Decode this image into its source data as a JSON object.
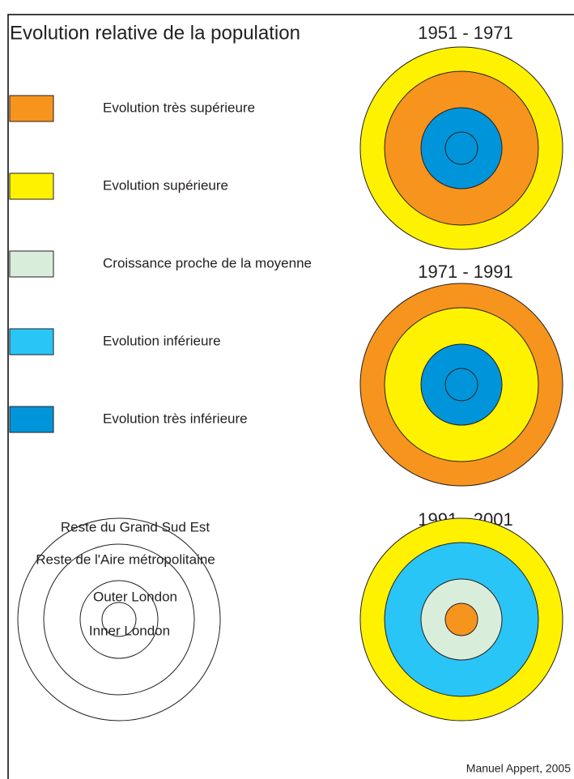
{
  "header": {
    "title": "Evolution relative de la population"
  },
  "legend": [
    {
      "label": "Evolution très supérieure",
      "color": "#f7941d"
    },
    {
      "label": "Evolution supérieure",
      "color": "#fff200"
    },
    {
      "label": "Croissance proche de la moyenne",
      "color": "#d9eddb"
    },
    {
      "label": "Evolution inférieure",
      "color": "#29c5f6"
    },
    {
      "label": "Evolution très inférieure",
      "color": "#0095da"
    }
  ],
  "periods": [
    {
      "label": "1951 - 1971",
      "rings": [
        "#fff200",
        "#f7941d",
        "#0095da",
        "#0095da"
      ]
    },
    {
      "label": "1971 - 1991",
      "rings": [
        "#f7941d",
        "#fff200",
        "#0095da",
        "#0095da"
      ]
    },
    {
      "label": "1991 - 2001",
      "rings": [
        "#fff200",
        "#29c5f6",
        "#d9eddb",
        "#f7941d"
      ]
    }
  ],
  "zones": [
    "Reste du Grand Sud Est",
    "Reste de l'Aire métropolitaine",
    "Outer London",
    "Inner London"
  ],
  "credit": "Manuel Appert, 2005"
}
